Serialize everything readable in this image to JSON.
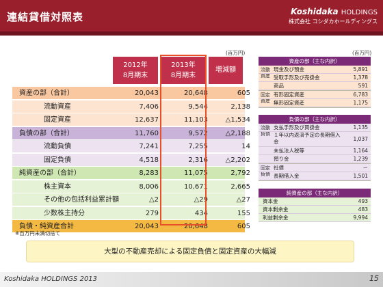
{
  "header": {
    "title": "連結貸借対照表",
    "brand": "Koshidaka",
    "brand_suffix": "HOLDINGS",
    "brand_jp": "株式会社 コシダカホールディングス"
  },
  "units": {
    "left": "(百万円)",
    "right": "(百万円)"
  },
  "columns": [
    "2012年\n8月期末",
    "2013年\n8月期末",
    "増減額"
  ],
  "rows": [
    {
      "label": "資産の部（合計）",
      "v2012": "20,043",
      "v2013": "20,648",
      "diff": "605",
      "type": "asset-head"
    },
    {
      "label": "流動資産",
      "v2012": "7,406",
      "v2013": "9,544",
      "diff": "2,138",
      "type": "asset"
    },
    {
      "label": "固定資産",
      "v2012": "12,637",
      "v2013": "11,103",
      "diff": "△1,534",
      "type": "asset"
    },
    {
      "label": "負債の部（合計）",
      "v2012": "11,760",
      "v2013": "9,572",
      "diff": "△2,188",
      "type": "liab-head"
    },
    {
      "label": "流動負債",
      "v2012": "7,241",
      "v2013": "7,255",
      "diff": "14",
      "type": "liab"
    },
    {
      "label": "固定負債",
      "v2012": "4,518",
      "v2013": "2,316",
      "diff": "△2,202",
      "type": "liab"
    },
    {
      "label": "純資産の部（合計）",
      "v2012": "8,283",
      "v2013": "11,075",
      "diff": "2,792",
      "type": "eq-head"
    },
    {
      "label": "株主資本",
      "v2012": "8,006",
      "v2013": "10,671",
      "diff": "2,665",
      "type": "eq"
    },
    {
      "label": "その他の包括利益累計額",
      "v2012": "△2",
      "v2013": "△29",
      "diff": "△27",
      "type": "eq"
    },
    {
      "label": "少数株主持分",
      "v2012": "279",
      "v2013": "434",
      "diff": "155",
      "type": "eq"
    },
    {
      "label": "負債・純資産合計",
      "v2012": "20,043",
      "v2013": "20,648",
      "diff": "605",
      "type": "total"
    }
  ],
  "asset_detail": {
    "title": "資産の部（主な内訳）",
    "groups": [
      {
        "side": "流動資産",
        "items": [
          {
            "name": "現金及び預金",
            "value": "5,891"
          },
          {
            "name": "受取手形及び売掛金",
            "value": "1,378"
          },
          {
            "name": "商品",
            "value": "591"
          }
        ]
      },
      {
        "side": "固定資産",
        "items": [
          {
            "name": "有形固定資産",
            "value": "6,783"
          },
          {
            "name": "無形固定資産",
            "value": "1,175"
          }
        ]
      }
    ]
  },
  "liab_detail": {
    "title": "負債の部（主な内訳）",
    "groups": [
      {
        "side": "流動負債",
        "items": [
          {
            "name": "支払手形及び買掛金",
            "value": "1,135"
          },
          {
            "name": "１年以内返済予定の長期借入金",
            "value": "1,037"
          },
          {
            "name": "未払法人税等",
            "value": "1,164"
          },
          {
            "name": "預り金",
            "value": "1,239"
          }
        ]
      },
      {
        "side": "固定負債",
        "items": [
          {
            "name": "社債",
            "value": "－"
          },
          {
            "name": "長期借入金",
            "value": "1,501"
          }
        ]
      }
    ]
  },
  "eq_detail": {
    "title": "純資産の部（主な内訳）",
    "items": [
      {
        "name": "資本金",
        "value": "493"
      },
      {
        "name": "資本剰余金",
        "value": "483"
      },
      {
        "name": "利益剰余金",
        "value": "9,994"
      }
    ]
  },
  "note": "※百万円未満切捨て",
  "callout": "大型の不動産売却による固定負債と固定資産の大幅減",
  "footer": {
    "text": "Koshidaka HOLDINGS 2013",
    "page": "15"
  },
  "colors": {
    "header": "#9a1f2c",
    "asset": "#f9c7a0",
    "liab": "#c9b3d8",
    "equity": "#cfe8b3",
    "total": "#f4b942",
    "accent": "#e8502a"
  }
}
